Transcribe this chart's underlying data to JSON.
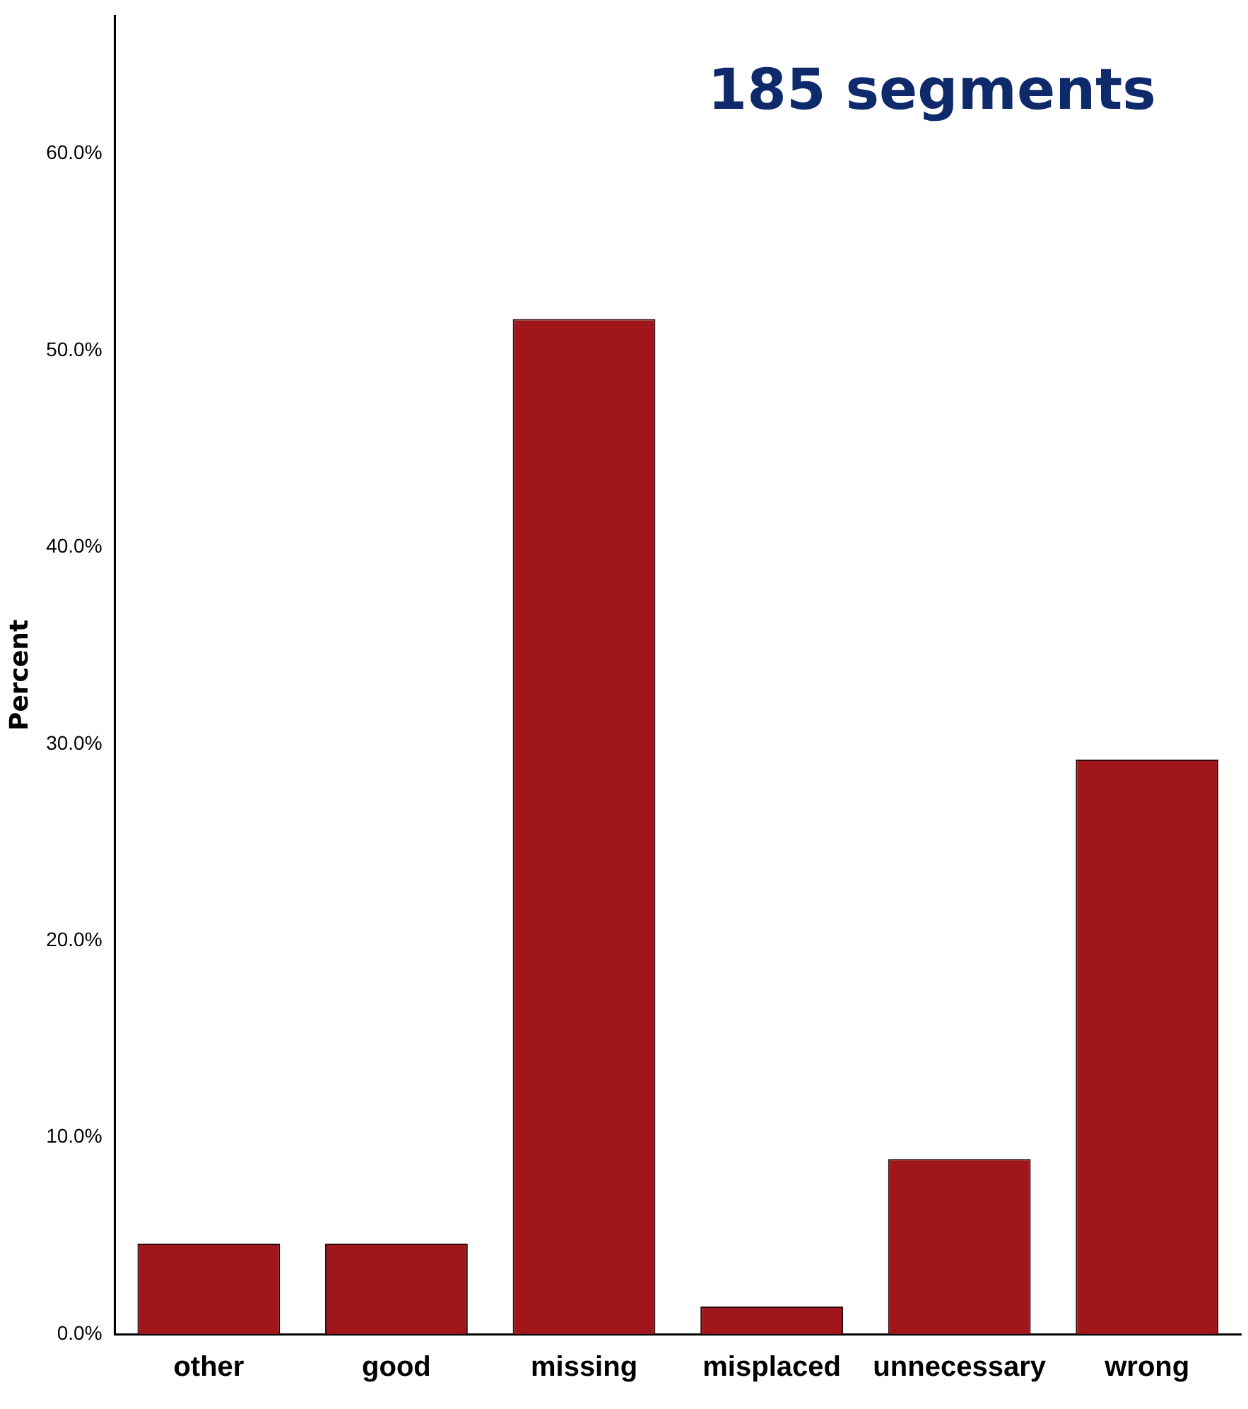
{
  "chart_data": {
    "type": "bar",
    "ylabel": "Percent",
    "annotations": [
      "185 segments"
    ],
    "categories": [
      "other",
      "good",
      "missing",
      "misplaced",
      "unnecessary",
      "wrong"
    ],
    "values": [
      4.6,
      4.6,
      51.6,
      1.4,
      8.9,
      29.2
    ],
    "color": "#a0161b",
    "ylim": [
      0,
      67
    ],
    "yticks": [
      {
        "value": 0,
        "label": "0.0%"
      },
      {
        "value": 10,
        "label": "10.0%"
      },
      {
        "value": 20,
        "label": "20.0%"
      },
      {
        "value": 30,
        "label": "30.0%"
      },
      {
        "value": 40,
        "label": "40.0%"
      },
      {
        "value": 50,
        "label": "50.0%"
      },
      {
        "value": 60,
        "label": "60.0%"
      }
    ],
    "grid": false,
    "legend": false
  }
}
